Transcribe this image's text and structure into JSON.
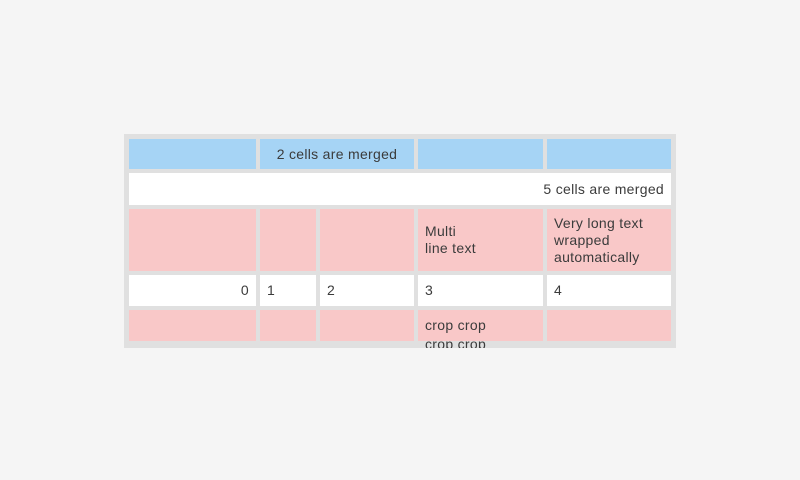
{
  "page": {
    "background": "#f5f5f5"
  },
  "table": {
    "description": "table widget with merged, multi-line and cropped cells",
    "background": "#e0e0e0",
    "text_color": "#3b3b3b",
    "cell_colors": {
      "header_blue": "#a6d4f5",
      "pink": "#f9c8c8",
      "white": "#ffffff"
    },
    "rows": [
      {
        "cells": [
          "",
          "2 cells are merged",
          "",
          ""
        ]
      },
      {
        "cells": [
          "5 cells are merged"
        ]
      },
      {
        "cells": [
          "",
          "",
          "",
          "Multi\nline text",
          "Very long text wrapped automatically"
        ]
      },
      {
        "cells": [
          "0",
          "1",
          "2",
          "3",
          "4"
        ]
      },
      {
        "cells": [
          "",
          "",
          "",
          "crop crop\ncrop crop",
          ""
        ]
      }
    ]
  }
}
